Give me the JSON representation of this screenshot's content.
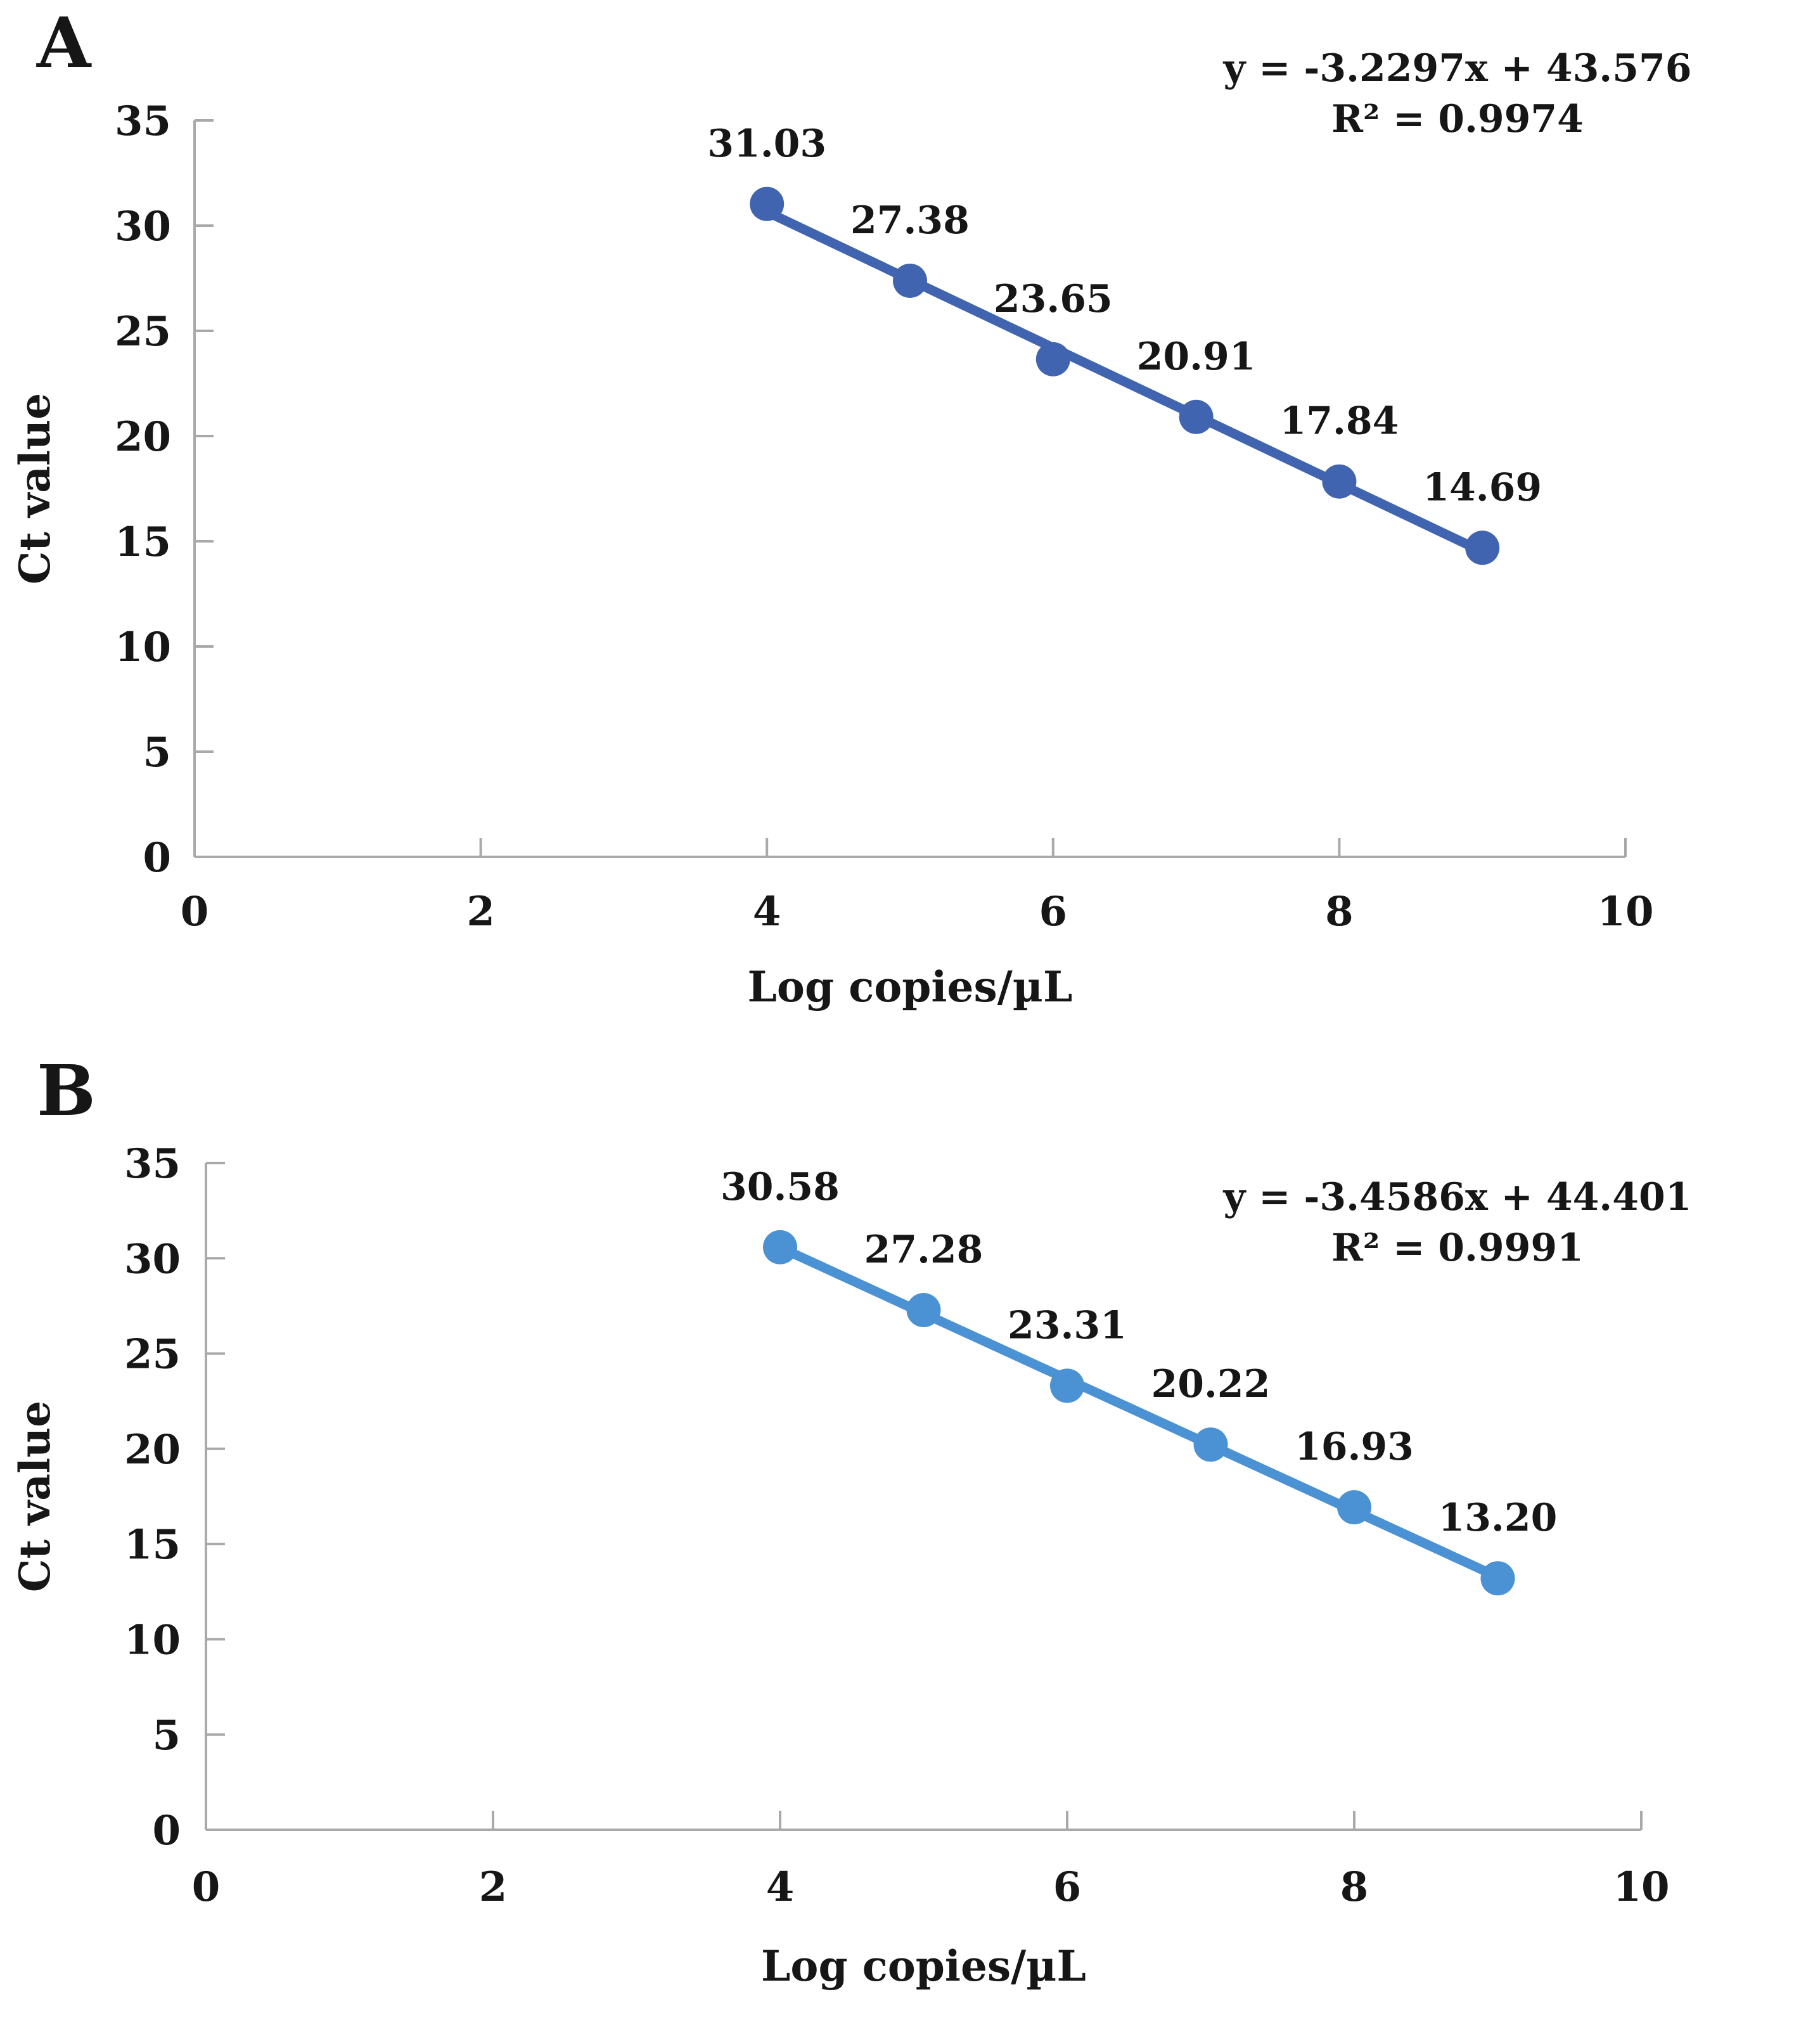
{
  "figure": {
    "background_color": "#ffffff",
    "panel_count": 2
  },
  "chart_data": [
    {
      "type": "scatter",
      "panel_label": "A",
      "equation": "y = -3.2297x + 43.576",
      "r_squared": "R² = 0.9974",
      "trendline": {
        "slope": -3.2297,
        "intercept": 43.576
      },
      "xlabel": "Log copies/µL",
      "ylabel": "Ct value",
      "xlim": [
        0,
        10
      ],
      "ylim": [
        0,
        35
      ],
      "xticks": [
        0,
        2,
        4,
        6,
        8,
        10
      ],
      "yticks": [
        0,
        5,
        10,
        15,
        20,
        25,
        30,
        35
      ],
      "grid": false,
      "legend": "none",
      "axis_color": "#a9a9a9",
      "series": [
        {
          "name": "standard-curve-A",
          "color": "#4164b0",
          "x": [
            4,
            5,
            6,
            7,
            8,
            9
          ],
          "y": [
            31.03,
            27.38,
            23.65,
            20.91,
            17.84,
            14.69
          ],
          "point_labels": [
            "31.03",
            "27.38",
            "23.65",
            "20.91",
            "17.84",
            "14.69"
          ]
        }
      ]
    },
    {
      "type": "scatter",
      "panel_label": "B",
      "equation": "y = -3.4586x + 44.401",
      "r_squared": "R² = 0.9991",
      "trendline": {
        "slope": -3.4586,
        "intercept": 44.401
      },
      "xlabel": "Log copies/µL",
      "ylabel": "Ct value",
      "xlim": [
        0,
        10
      ],
      "ylim": [
        0,
        35
      ],
      "xticks": [
        0,
        2,
        4,
        6,
        8,
        10
      ],
      "yticks": [
        0,
        5,
        10,
        15,
        20,
        25,
        30,
        35
      ],
      "grid": false,
      "legend": "none",
      "axis_color": "#a9a9a9",
      "series": [
        {
          "name": "standard-curve-B",
          "color": "#4b92d4",
          "x": [
            4,
            5,
            6,
            7,
            8,
            9
          ],
          "y": [
            30.58,
            27.28,
            23.31,
            20.22,
            16.93,
            13.2
          ],
          "point_labels": [
            "30.58",
            "27.28",
            "23.31",
            "20.22",
            "16.93",
            "13.20"
          ]
        }
      ]
    }
  ]
}
